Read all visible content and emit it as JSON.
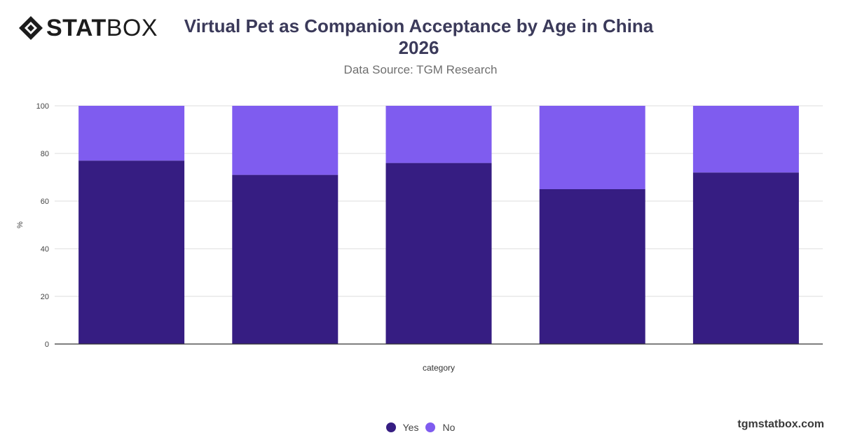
{
  "brand": {
    "logo_bold": "STAT",
    "logo_light": "BOX",
    "site": "tgmstatbox.com"
  },
  "header": {
    "title_line1": "Virtual Pet as Companion Acceptance by Age in China",
    "title_line2": "2026",
    "subtitle": "Data Source: TGM Research"
  },
  "chart_data": {
    "type": "bar",
    "stacked": true,
    "categories": [
      "",
      "",
      "",
      "",
      ""
    ],
    "series": [
      {
        "name": "Yes",
        "values": [
          77,
          71,
          76,
          65,
          72
        ],
        "color": "#361d82"
      },
      {
        "name": "No",
        "values": [
          23,
          29,
          24,
          35,
          28
        ],
        "color": "#7f5cef"
      }
    ],
    "xlabel": "category",
    "ylabel": "%",
    "ylim": [
      0,
      100
    ],
    "yticks": [
      0,
      20,
      40,
      60,
      80,
      100
    ],
    "grid": true,
    "legend_position": "bottom"
  }
}
